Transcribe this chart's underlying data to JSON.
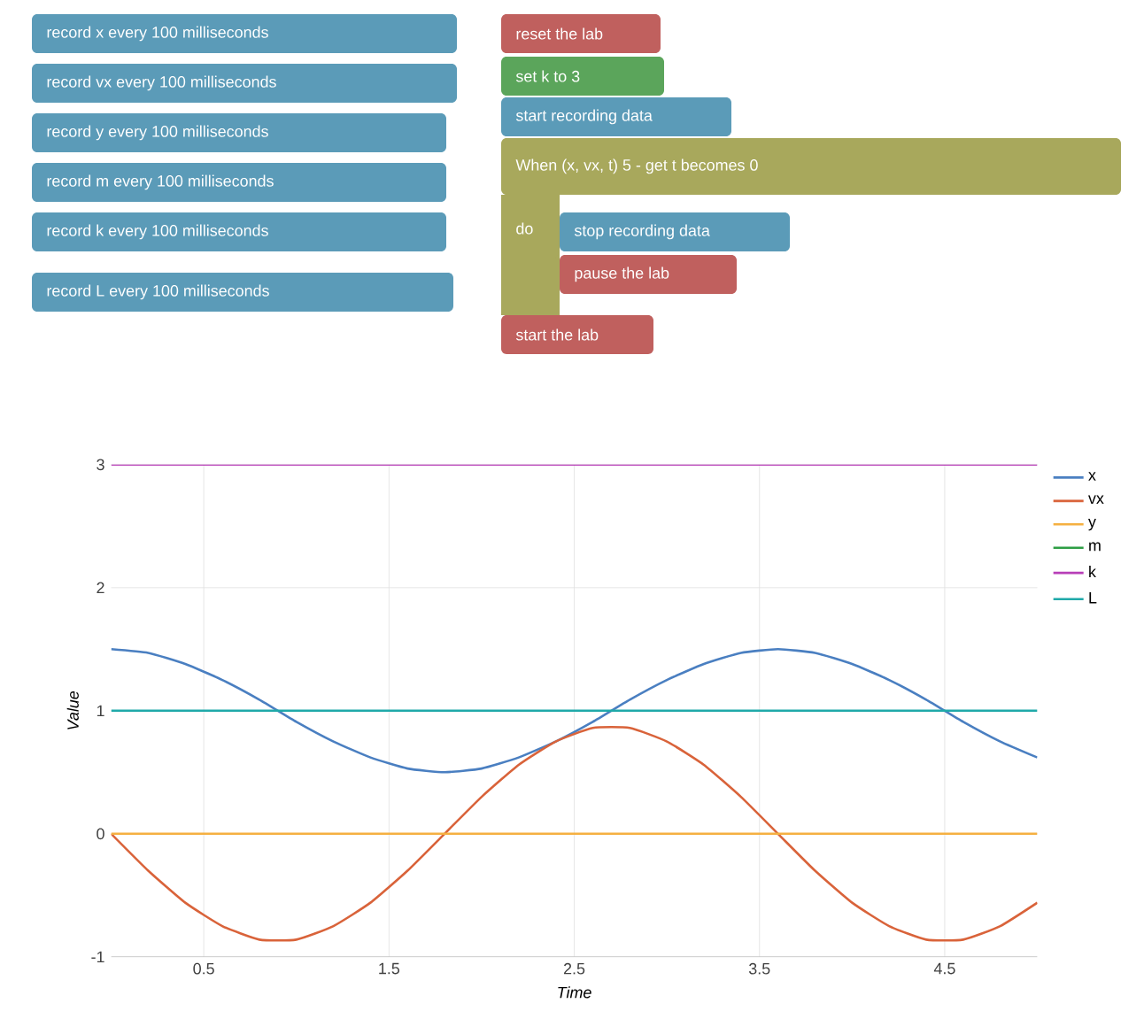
{
  "chart_data": {
    "type": "line",
    "xlabel": "Time",
    "ylabel": "Value",
    "annotations": [
      "record x every 100 milliseconds",
      "record vx every 100 milliseconds",
      "record y every 100 milliseconds",
      "record m every 100 milliseconds",
      "record k every 100 milliseconds",
      "record L every 100 milliseconds",
      "reset the lab",
      "set k to 3",
      "start recording data",
      "When (x, vx, t) 5 - get t becomes 0",
      "do",
      "stop recording data",
      "pause the lab",
      "start the lab"
    ],
    "x": [
      0,
      0.2,
      0.4,
      0.6,
      0.8,
      1.0,
      1.2,
      1.4,
      1.6,
      1.8,
      2.0,
      2.2,
      2.4,
      2.6,
      2.8,
      3.0,
      3.2,
      3.4,
      3.6,
      3.8,
      4.0,
      4.2,
      4.4,
      4.6,
      4.8,
      5.0
    ],
    "series": [
      {
        "name": "x",
        "color": "#4a7fc1",
        "values": [
          1.5,
          1.47,
          1.38,
          1.25,
          1.09,
          0.91,
          0.75,
          0.62,
          0.53,
          0.5,
          0.53,
          0.62,
          0.75,
          0.91,
          1.09,
          1.25,
          1.38,
          1.47,
          1.5,
          1.47,
          1.38,
          1.25,
          1.09,
          0.91,
          0.75,
          0.62
        ]
      },
      {
        "name": "vx",
        "color": "#d9633a",
        "values": [
          0,
          -0.3,
          -0.56,
          -0.75,
          -0.86,
          -0.86,
          -0.75,
          -0.56,
          -0.3,
          0,
          0.3,
          0.56,
          0.75,
          0.86,
          0.86,
          0.75,
          0.56,
          0.3,
          0,
          -0.3,
          -0.56,
          -0.75,
          -0.86,
          -0.86,
          -0.75,
          -0.56
        ]
      },
      {
        "name": "y",
        "color": "#f5b041",
        "values": [
          0,
          0,
          0,
          0,
          0,
          0,
          0,
          0,
          0,
          0,
          0,
          0,
          0,
          0,
          0,
          0,
          0,
          0,
          0,
          0,
          0,
          0,
          0,
          0,
          0,
          0
        ]
      },
      {
        "name": "m",
        "color": "#2e9e45",
        "values": [
          null,
          null,
          null,
          null,
          null,
          null,
          null,
          null,
          null,
          null,
          null,
          null,
          null,
          null,
          null,
          null,
          null,
          null,
          null,
          null,
          null,
          null,
          null,
          null,
          null,
          null
        ]
      },
      {
        "name": "k",
        "color": "#b83fb8",
        "values": [
          3,
          3,
          3,
          3,
          3,
          3,
          3,
          3,
          3,
          3,
          3,
          3,
          3,
          3,
          3,
          3,
          3,
          3,
          3,
          3,
          3,
          3,
          3,
          3,
          3,
          3
        ]
      },
      {
        "name": "L",
        "color": "#1fa9a9",
        "values": [
          1,
          1,
          1,
          1,
          1,
          1,
          1,
          1,
          1,
          1,
          1,
          1,
          1,
          1,
          1,
          1,
          1,
          1,
          1,
          1,
          1,
          1,
          1,
          1,
          1,
          1
        ]
      }
    ],
    "xlim": [
      0,
      5
    ],
    "xticks": [
      0.5,
      1.5,
      2.5,
      3.5,
      4.5
    ],
    "ylim": [
      -1,
      3
    ],
    "yticks": [
      -1,
      0,
      1,
      2,
      3
    ],
    "grid": true,
    "legend": "right",
    "marker": "none",
    "line_style": "solid"
  }
}
